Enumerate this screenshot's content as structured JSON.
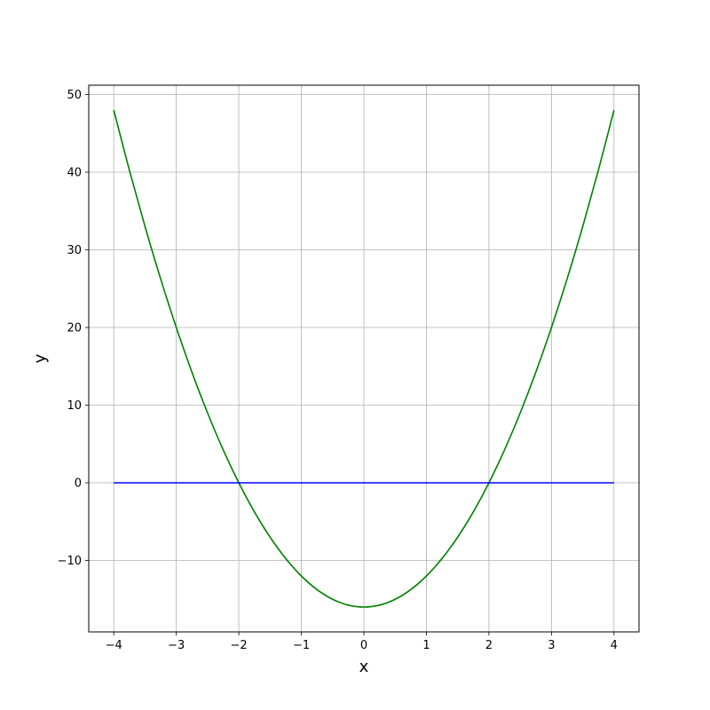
{
  "chart_data": {
    "type": "line",
    "title": "",
    "xlabel": "x",
    "ylabel": "y",
    "xlim": [
      -4.4,
      4.4
    ],
    "ylim": [
      -19.2,
      51.2
    ],
    "grid": true,
    "xticks": [
      -4,
      -3,
      -2,
      -1,
      0,
      1,
      2,
      3,
      4
    ],
    "xtick_labels": [
      "−4",
      "−3",
      "−2",
      "−1",
      "0",
      "1",
      "2",
      "3",
      "4"
    ],
    "yticks": [
      -10,
      0,
      10,
      20,
      30,
      40,
      50
    ],
    "ytick_labels": [
      "−10",
      "0",
      "10",
      "20",
      "30",
      "40",
      "50"
    ],
    "series": [
      {
        "color": "#008000",
        "x": [
          -4,
          -3.75,
          -3.5,
          -3.25,
          -3,
          -2.75,
          -2.5,
          -2.25,
          -2,
          -1.75,
          -1.5,
          -1.25,
          -1,
          -0.75,
          -0.5,
          -0.25,
          0,
          0.25,
          0.5,
          0.75,
          1,
          1.25,
          1.5,
          1.75,
          2,
          2.25,
          2.5,
          2.75,
          3,
          3.25,
          3.5,
          3.75,
          4
        ],
        "y": [
          48,
          40.25,
          33,
          26.25,
          20,
          14.25,
          9,
          4.25,
          0,
          -3.75,
          -7,
          -9.75,
          -12,
          -13.75,
          -15,
          -15.75,
          -16,
          -15.75,
          -15,
          -13.75,
          -12,
          -9.75,
          -7,
          -3.75,
          0,
          4.25,
          9,
          14.25,
          20,
          26.25,
          33,
          40.25,
          48
        ]
      },
      {
        "color": "#0000ff",
        "x": [
          -4,
          4
        ],
        "y": [
          0,
          0
        ]
      }
    ]
  }
}
